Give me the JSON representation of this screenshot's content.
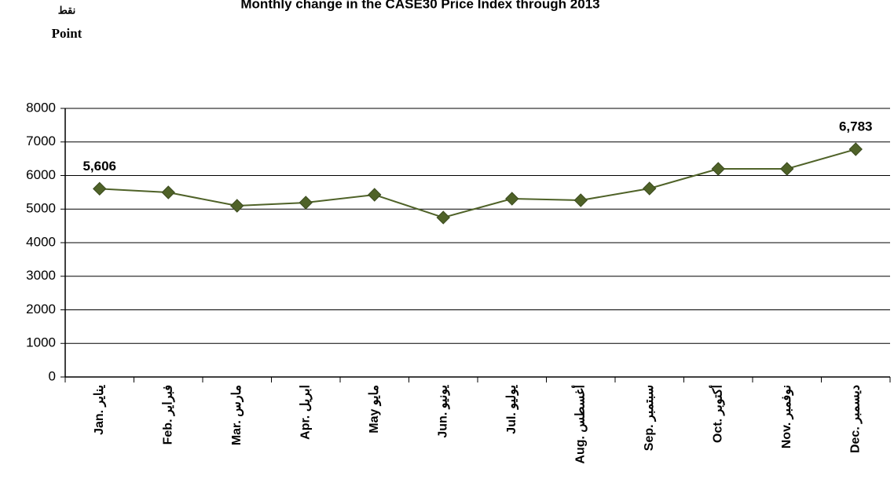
{
  "chart_data": {
    "type": "line",
    "title": "Monthly change in the CASE30 Price Index through 2013",
    "y_label_ar": "نقط",
    "y_label": "Point",
    "categories": [
      "Jan. يناير",
      "Feb. فبراير",
      "Mar. مارس",
      "Apr. ابريل",
      "May مايو",
      "Jun. يونيو",
      "Jul. يوليو",
      "Aug. أغسطس",
      "Sep. سبتمبر",
      "Oct. أكتوبر",
      "Nov. نوفمبر",
      "Dec. ديسمبر"
    ],
    "series": [
      {
        "name": "CASE30",
        "color": "#4f6228",
        "values": [
          5606,
          5497,
          5099,
          5193,
          5427,
          4749,
          5310,
          5263,
          5614,
          6199,
          6199,
          6783
        ],
        "value_labels": [
          "5,606",
          null,
          null,
          null,
          null,
          null,
          null,
          null,
          null,
          null,
          null,
          "6,783"
        ]
      }
    ],
    "ylim": [
      0,
      8000
    ],
    "yticks": [
      0,
      1000,
      2000,
      3000,
      4000,
      5000,
      6000,
      7000,
      8000
    ],
    "grid": true
  }
}
